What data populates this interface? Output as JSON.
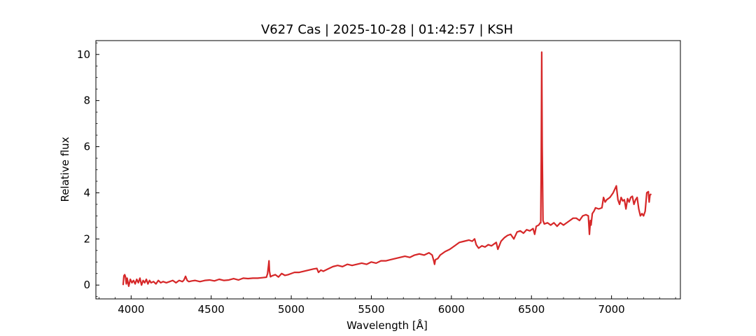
{
  "chart_data": {
    "type": "line",
    "title": "V627 Cas | 2025-10-28 | 01:42:57 | KSH",
    "xlabel": "Wavelength [Å]",
    "ylabel": "Relative flux",
    "xlim": [
      3780,
      7430
    ],
    "ylim": [
      -0.6,
      10.6
    ],
    "xticks": [
      4000,
      4500,
      5000,
      5500,
      6000,
      6500,
      7000
    ],
    "yticks": [
      0,
      2,
      4,
      6,
      8,
      10
    ],
    "grid": false,
    "legend": "none",
    "series": [
      {
        "color": "#d62728",
        "x": [
          3950,
          3955,
          3960,
          3965,
          3970,
          3975,
          3985,
          3995,
          4005,
          4015,
          4025,
          4035,
          4045,
          4055,
          4065,
          4075,
          4085,
          4095,
          4105,
          4115,
          4125,
          4140,
          4155,
          4170,
          4185,
          4200,
          4220,
          4240,
          4260,
          4280,
          4300,
          4320,
          4330,
          4340,
          4350,
          4360,
          4380,
          4400,
          4430,
          4460,
          4490,
          4520,
          4550,
          4580,
          4610,
          4640,
          4670,
          4700,
          4730,
          4760,
          4790,
          4820,
          4845,
          4852,
          4858,
          4861,
          4864,
          4870,
          4880,
          4900,
          4920,
          4940,
          4960,
          4980,
          5000,
          5020,
          5050,
          5080,
          5110,
          5140,
          5160,
          5170,
          5185,
          5200,
          5230,
          5260,
          5290,
          5320,
          5350,
          5380,
          5410,
          5440,
          5470,
          5500,
          5530,
          5560,
          5590,
          5620,
          5650,
          5680,
          5710,
          5740,
          5770,
          5800,
          5830,
          5860,
          5880,
          5890,
          5895,
          5900,
          5915,
          5930,
          5960,
          5990,
          6020,
          6050,
          6080,
          6110,
          6130,
          6145,
          6155,
          6170,
          6190,
          6210,
          6230,
          6250,
          6270,
          6280,
          6290,
          6310,
          6330,
          6350,
          6370,
          6390,
          6410,
          6430,
          6450,
          6470,
          6490,
          6510,
          6520,
          6530,
          6545,
          6555,
          6558,
          6561,
          6564,
          6567,
          6572,
          6580,
          6600,
          6620,
          6640,
          6660,
          6680,
          6700,
          6720,
          6740,
          6760,
          6780,
          6800,
          6820,
          6840,
          6855,
          6862,
          6868,
          6872,
          6880,
          6890,
          6900,
          6920,
          6940,
          6950,
          6960,
          6970,
          6990,
          7010,
          7030,
          7040,
          7050,
          7060,
          7070,
          7080,
          7090,
          7100,
          7110,
          7120,
          7130,
          7140,
          7150,
          7160,
          7170,
          7180,
          7190,
          7200,
          7210,
          7220,
          7230,
          7235,
          7240,
          7248
        ],
        "y": [
          0.0,
          0.4,
          0.45,
          0.35,
          0.05,
          0.3,
          -0.05,
          0.25,
          0.1,
          0.2,
          0.05,
          0.25,
          0.1,
          0.3,
          0.0,
          0.2,
          0.1,
          0.25,
          0.05,
          0.2,
          0.1,
          0.15,
          0.05,
          0.2,
          0.1,
          0.15,
          0.1,
          0.15,
          0.2,
          0.1,
          0.2,
          0.15,
          0.22,
          0.38,
          0.2,
          0.15,
          0.18,
          0.2,
          0.15,
          0.2,
          0.22,
          0.18,
          0.25,
          0.2,
          0.22,
          0.28,
          0.22,
          0.3,
          0.28,
          0.3,
          0.3,
          0.32,
          0.34,
          0.5,
          0.85,
          1.05,
          0.6,
          0.36,
          0.4,
          0.45,
          0.35,
          0.5,
          0.42,
          0.45,
          0.5,
          0.55,
          0.55,
          0.6,
          0.65,
          0.7,
          0.72,
          0.55,
          0.65,
          0.6,
          0.7,
          0.8,
          0.85,
          0.8,
          0.9,
          0.85,
          0.9,
          0.95,
          0.9,
          1.0,
          0.95,
          1.05,
          1.05,
          1.1,
          1.15,
          1.2,
          1.25,
          1.2,
          1.3,
          1.35,
          1.3,
          1.4,
          1.3,
          1.05,
          0.9,
          1.1,
          1.15,
          1.3,
          1.45,
          1.55,
          1.7,
          1.85,
          1.9,
          1.95,
          1.9,
          2.0,
          1.75,
          1.6,
          1.7,
          1.65,
          1.75,
          1.7,
          1.8,
          1.85,
          1.55,
          1.9,
          2.05,
          2.15,
          2.2,
          2.0,
          2.3,
          2.35,
          2.25,
          2.4,
          2.35,
          2.45,
          2.2,
          2.55,
          2.6,
          2.7,
          2.7,
          5.5,
          10.1,
          6.0,
          2.8,
          2.65,
          2.7,
          2.6,
          2.7,
          2.55,
          2.7,
          2.6,
          2.7,
          2.8,
          2.9,
          2.9,
          2.8,
          3.0,
          3.05,
          3.0,
          2.2,
          2.8,
          2.6,
          3.1,
          3.2,
          3.35,
          3.3,
          3.35,
          3.8,
          3.6,
          3.7,
          3.8,
          4.0,
          4.3,
          3.7,
          3.5,
          3.8,
          3.65,
          3.7,
          3.3,
          3.75,
          3.6,
          3.8,
          3.85,
          3.5,
          3.7,
          3.8,
          3.3,
          3.0,
          3.1,
          3.0,
          3.2,
          4.0,
          4.05,
          3.6,
          3.9,
          3.95
        ]
      }
    ]
  }
}
